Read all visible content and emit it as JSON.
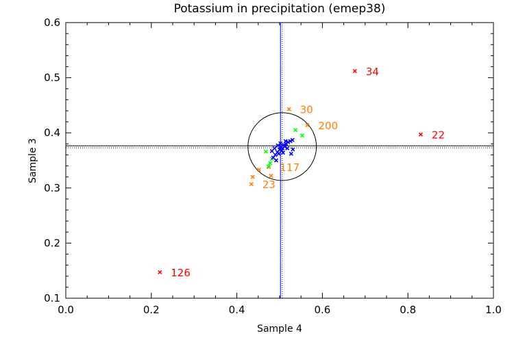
{
  "chart_data": {
    "type": "scatter",
    "title": "Potassium in precipitation (emep38)",
    "xlabel": "Sample 4",
    "ylabel": "Sample 3",
    "xlim": [
      0.0,
      1.0
    ],
    "ylim": [
      0.1,
      0.6
    ],
    "xticks": [
      0.0,
      0.2,
      0.4,
      0.6,
      0.8,
      1.0
    ],
    "xtick_labels": [
      "0.0",
      "0.2",
      "0.4",
      "0.6",
      "0.8",
      "1.0"
    ],
    "yticks": [
      0.1,
      0.2,
      0.3,
      0.4,
      0.5,
      0.6
    ],
    "ytick_labels": [
      "0.1",
      "0.2",
      "0.3",
      "0.4",
      "0.5",
      "0.6"
    ],
    "grid": false,
    "colors": {
      "red": "#ff0000",
      "orange": "#ff8000",
      "green": "#00ff00",
      "blue": "#0000ff",
      "axis": "#000000"
    },
    "reference_lines": {
      "x_solid": 0.502,
      "x_dotted": 0.506,
      "y_solid": 0.3765,
      "y_dotted": 0.373
    },
    "circle": {
      "cx": 0.506,
      "cy": 0.375,
      "rx": 0.08,
      "ry": 0.0615
    },
    "series": [
      {
        "name": "red",
        "color": "#ff0000",
        "points": [
          {
            "x": 0.22,
            "y": 0.147,
            "label": "126"
          },
          {
            "x": 0.676,
            "y": 0.512,
            "label": "34"
          },
          {
            "x": 0.83,
            "y": 0.397,
            "label": "22"
          }
        ]
      },
      {
        "name": "orange",
        "color": "#ff8000",
        "points": [
          {
            "x": 0.522,
            "y": 0.443,
            "label": "30"
          },
          {
            "x": 0.565,
            "y": 0.414,
            "label": "200"
          },
          {
            "x": 0.475,
            "y": 0.338,
            "label": "117"
          },
          {
            "x": 0.434,
            "y": 0.307,
            "label": "23"
          },
          {
            "x": 0.437,
            "y": 0.32,
            "label": ""
          },
          {
            "x": 0.452,
            "y": 0.333,
            "label": ""
          },
          {
            "x": 0.48,
            "y": 0.322,
            "label": ""
          }
        ]
      },
      {
        "name": "green",
        "color": "#00ff00",
        "points": [
          {
            "x": 0.537,
            "y": 0.405
          },
          {
            "x": 0.553,
            "y": 0.395
          },
          {
            "x": 0.468,
            "y": 0.366
          },
          {
            "x": 0.478,
            "y": 0.345
          },
          {
            "x": 0.482,
            "y": 0.353
          },
          {
            "x": 0.474,
            "y": 0.339
          }
        ]
      },
      {
        "name": "blue",
        "color": "#0000ff",
        "points": [
          {
            "x": 0.485,
            "y": 0.355
          },
          {
            "x": 0.49,
            "y": 0.36
          },
          {
            "x": 0.495,
            "y": 0.365
          },
          {
            "x": 0.5,
            "y": 0.37
          },
          {
            "x": 0.503,
            "y": 0.375
          },
          {
            "x": 0.507,
            "y": 0.372
          },
          {
            "x": 0.51,
            "y": 0.378
          },
          {
            "x": 0.515,
            "y": 0.38
          },
          {
            "x": 0.52,
            "y": 0.383
          },
          {
            "x": 0.525,
            "y": 0.385
          },
          {
            "x": 0.53,
            "y": 0.387
          },
          {
            "x": 0.492,
            "y": 0.35
          },
          {
            "x": 0.498,
            "y": 0.362
          },
          {
            "x": 0.505,
            "y": 0.368
          },
          {
            "x": 0.512,
            "y": 0.375
          },
          {
            "x": 0.518,
            "y": 0.372
          },
          {
            "x": 0.527,
            "y": 0.362
          },
          {
            "x": 0.531,
            "y": 0.37
          },
          {
            "x": 0.482,
            "y": 0.367
          },
          {
            "x": 0.488,
            "y": 0.372
          },
          {
            "x": 0.496,
            "y": 0.377
          },
          {
            "x": 0.502,
            "y": 0.381
          },
          {
            "x": 0.508,
            "y": 0.364
          },
          {
            "x": 0.514,
            "y": 0.385
          }
        ]
      }
    ]
  }
}
